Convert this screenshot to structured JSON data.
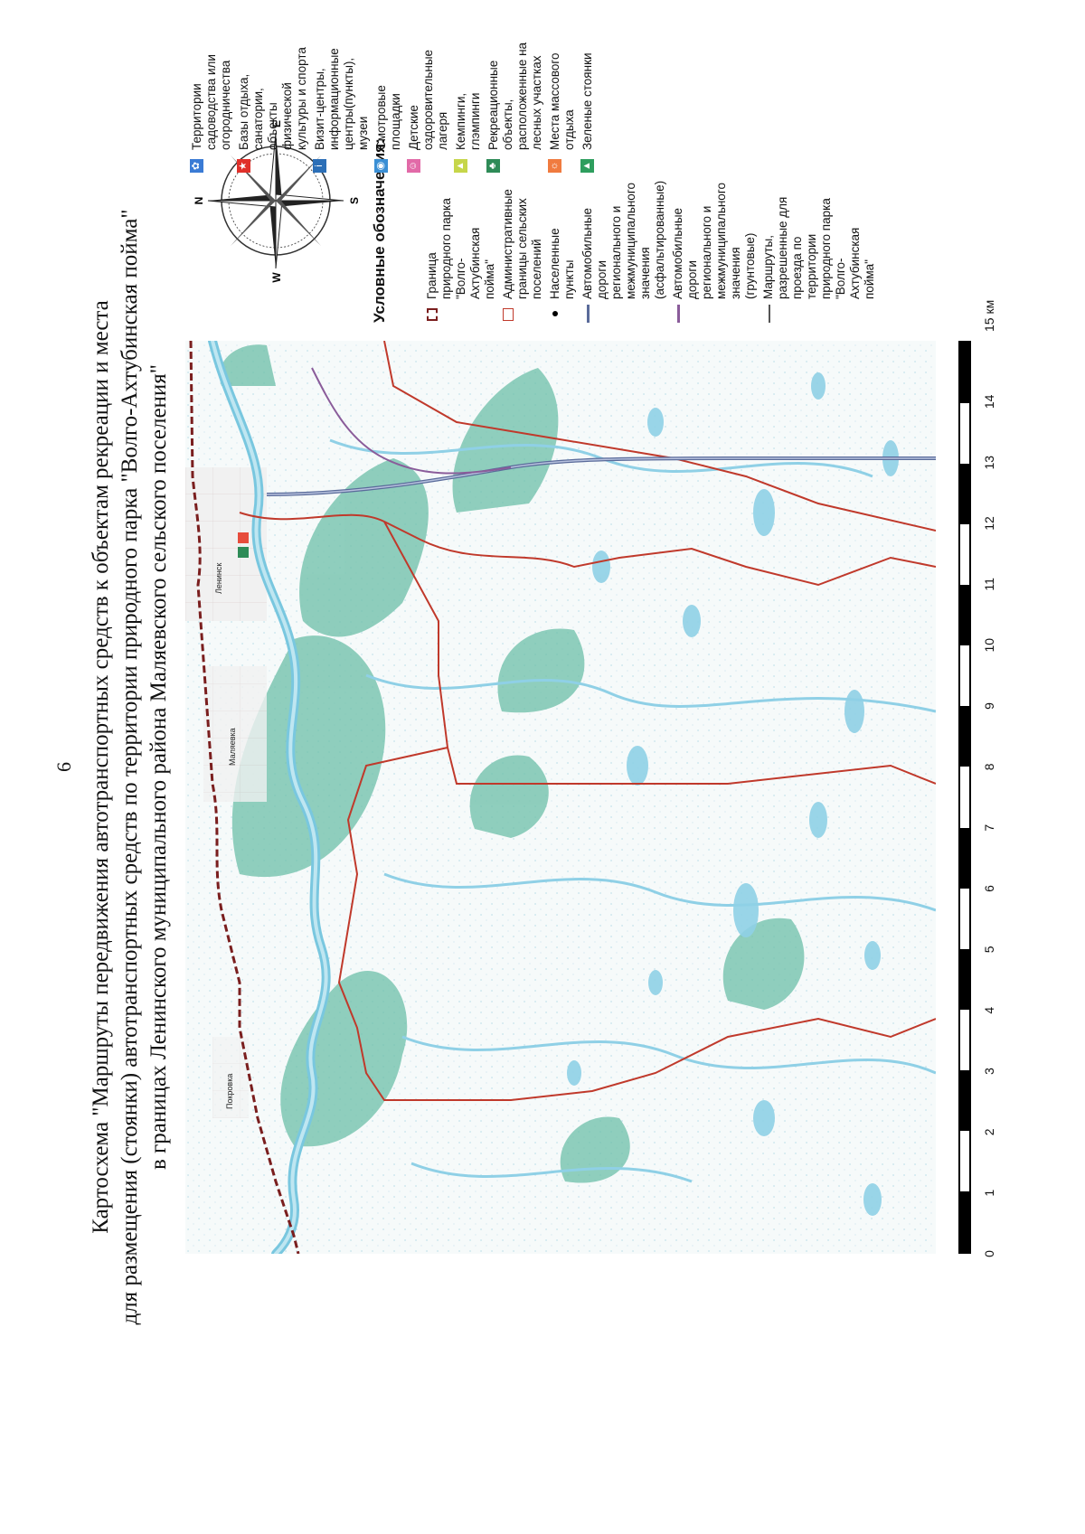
{
  "page_number": "6",
  "title_lines": [
    "Картосхема \"Маршруты передвижения автотранспортных средств к объектам рекреации и места",
    "для размещения (стоянки) автотранспортных средств по территории природного парка \"Волго-Ахтубинская пойма\"",
    "в границах Ленинского муниципального района Маляевского сельского поселения\""
  ],
  "map": {
    "town_labels": [
      "Ленинск",
      "Маляевка",
      "Покровка"
    ]
  },
  "compass": {
    "n": "N",
    "e": "E",
    "s": "S",
    "w": "W"
  },
  "scale_bar": {
    "ticks": [
      "0",
      "1",
      "2",
      "3",
      "4",
      "5",
      "6",
      "7",
      "8",
      "9",
      "10",
      "11",
      "12",
      "13",
      "14"
    ],
    "unit": "15 км"
  },
  "legend": {
    "title": "Условные обозначения:",
    "left_items": [
      {
        "icon": "park-boundary-dashed-icon",
        "text": "Граница природного парка \"Волго-Ахтубинская пойма\""
      },
      {
        "icon": "admin-boundary-box-icon",
        "text": "Административные границы сельских поселений"
      },
      {
        "icon": "settlement-dot-icon",
        "text": "Населенные пункты"
      },
      {
        "icon": "asphalt-road-line-icon",
        "text": "Автомобильные дороги регионального и межмуниципального значения (асфальтированные)"
      },
      {
        "icon": "dirt-road-line-icon",
        "text": "Автомобильные дороги регионального и межмуниципального значения (грунтовые)"
      },
      {
        "icon": "route-line-icon",
        "text": "Маршруты, разрешенные для проезда по территории природного парка \"Волго-Ахтубинская пойма\""
      }
    ],
    "right_items": [
      {
        "icon": "garden-territory-icon",
        "text": "Территории садоводства или огородничества"
      },
      {
        "icon": "recreation-base-icon",
        "text": "Базы отдыха, санатории, объекты физической культуры и спорта"
      },
      {
        "icon": "visitor-center-icon",
        "text": "Визит-центры, информационные центры(пункты), музеи"
      },
      {
        "icon": "viewpoint-icon",
        "text": "Смотровые площадки"
      },
      {
        "icon": "children-camp-icon",
        "text": "Детские оздоровительные лагеря"
      },
      {
        "icon": "camping-icon",
        "text": "Кемпинги, глэмпинги"
      },
      {
        "icon": "forest-recreation-icon",
        "text": "Рекреационные объекты, расположенные на лесных участках"
      },
      {
        "icon": "mass-recreation-icon",
        "text": "Места массового отдыха"
      },
      {
        "icon": "green-parking-icon",
        "text": "Зеленые стоянки"
      }
    ]
  },
  "colors": {
    "park_boundary": "#7a1e1e",
    "admin_boundary": "#c0392b",
    "asphalt_road": "#5a6b9a",
    "dirt_road": "#8a5c9a",
    "route": "#555555",
    "water": "#8fd0e6",
    "vegetation": "#5fb8a0",
    "settlement": "#c8a8a0"
  }
}
